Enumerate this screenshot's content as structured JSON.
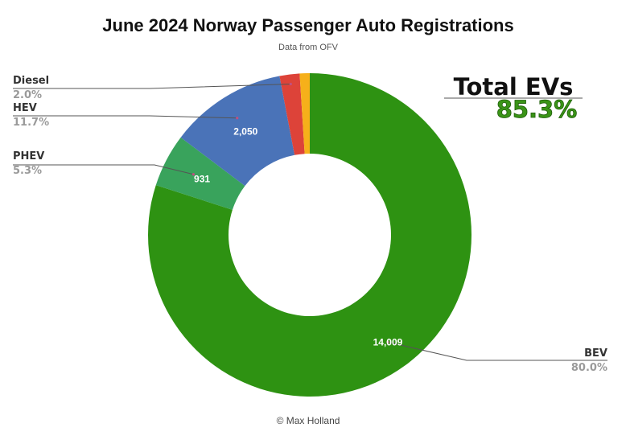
{
  "chart_data": {
    "type": "pie",
    "title": "June 2024 Norway Passenger Auto Registrations",
    "subtitle": "Data from OFV",
    "footer": "© Max Holland",
    "slices": [
      {
        "key": "bev",
        "name": "BEV",
        "percent_label": "80.0%",
        "value": 14009,
        "value_label": "14,009",
        "color": "#2e9212"
      },
      {
        "key": "phev",
        "name": "PHEV",
        "percent_label": "5.3%",
        "value": 931,
        "value_label": "931",
        "color": "#39a35c"
      },
      {
        "key": "hev",
        "name": "HEV",
        "percent_label": "11.7%",
        "value": 2050,
        "value_label": "2,050",
        "color": "#4a73b8"
      },
      {
        "key": "diesel",
        "name": "Diesel",
        "percent_label": "2.0%",
        "value": 350,
        "value_label": "",
        "color": "#dd4339"
      },
      {
        "key": "petrol",
        "name": "",
        "percent_label": "",
        "value": 175,
        "value_label": "",
        "color": "#f6b01a"
      }
    ],
    "callout": {
      "label": "Total EVs",
      "value": "85.3%"
    }
  }
}
